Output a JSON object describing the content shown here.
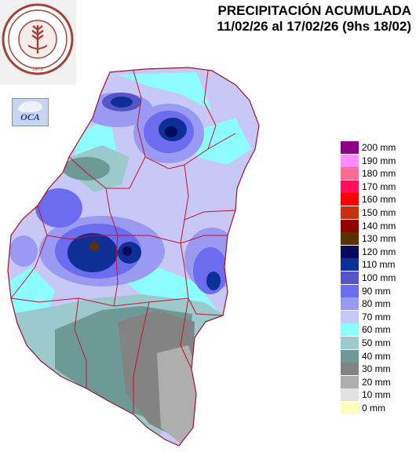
{
  "title": {
    "line1": "PRECIPITACIÓN ACUMULADA",
    "line2": "11/02/26 al 17/02/26 (9hs 18/02)"
  },
  "logo": {
    "name": "Bolsa de Cereales de Entre Ríos seal",
    "text": "BOLSA DE CEREALES DE ENTRE RIOS",
    "year": "1979",
    "color": "#a4423a"
  },
  "oca_logo": {
    "text": "OCA"
  },
  "legend": [
    {
      "label": "200 mm",
      "color": "#8b0087"
    },
    {
      "label": "190 mm",
      "color": "#ff8bff"
    },
    {
      "label": "180 mm",
      "color": "#ff6a8f"
    },
    {
      "label": "170 mm",
      "color": "#ff0f5a"
    },
    {
      "label": "160 mm",
      "color": "#ff0000"
    },
    {
      "label": "150 mm",
      "color": "#c82e12"
    },
    {
      "label": "140 mm",
      "color": "#8e0000"
    },
    {
      "label": "130 mm",
      "color": "#5c3100"
    },
    {
      "label": "120 mm",
      "color": "#060b60"
    },
    {
      "label": "110 mm",
      "color": "#0e2f96"
    },
    {
      "label": "100 mm",
      "color": "#5555c8"
    },
    {
      "label": "90 mm",
      "color": "#6c6cee"
    },
    {
      "label": "80 mm",
      "color": "#9a9af3"
    },
    {
      "label": "70 mm",
      "color": "#c8c8f6"
    },
    {
      "label": "60 mm",
      "color": "#8cfcfc"
    },
    {
      "label": "50 mm",
      "color": "#9ccacc"
    },
    {
      "label": "40 mm",
      "color": "#6e9a96"
    },
    {
      "label": "30 mm",
      "color": "#838383"
    },
    {
      "label": "20 mm",
      "color": "#aeaeae"
    },
    {
      "label": "10 mm",
      "color": "#e2e2e2"
    },
    {
      "label": "0 mm",
      "color": "#ffffc0"
    }
  ]
}
